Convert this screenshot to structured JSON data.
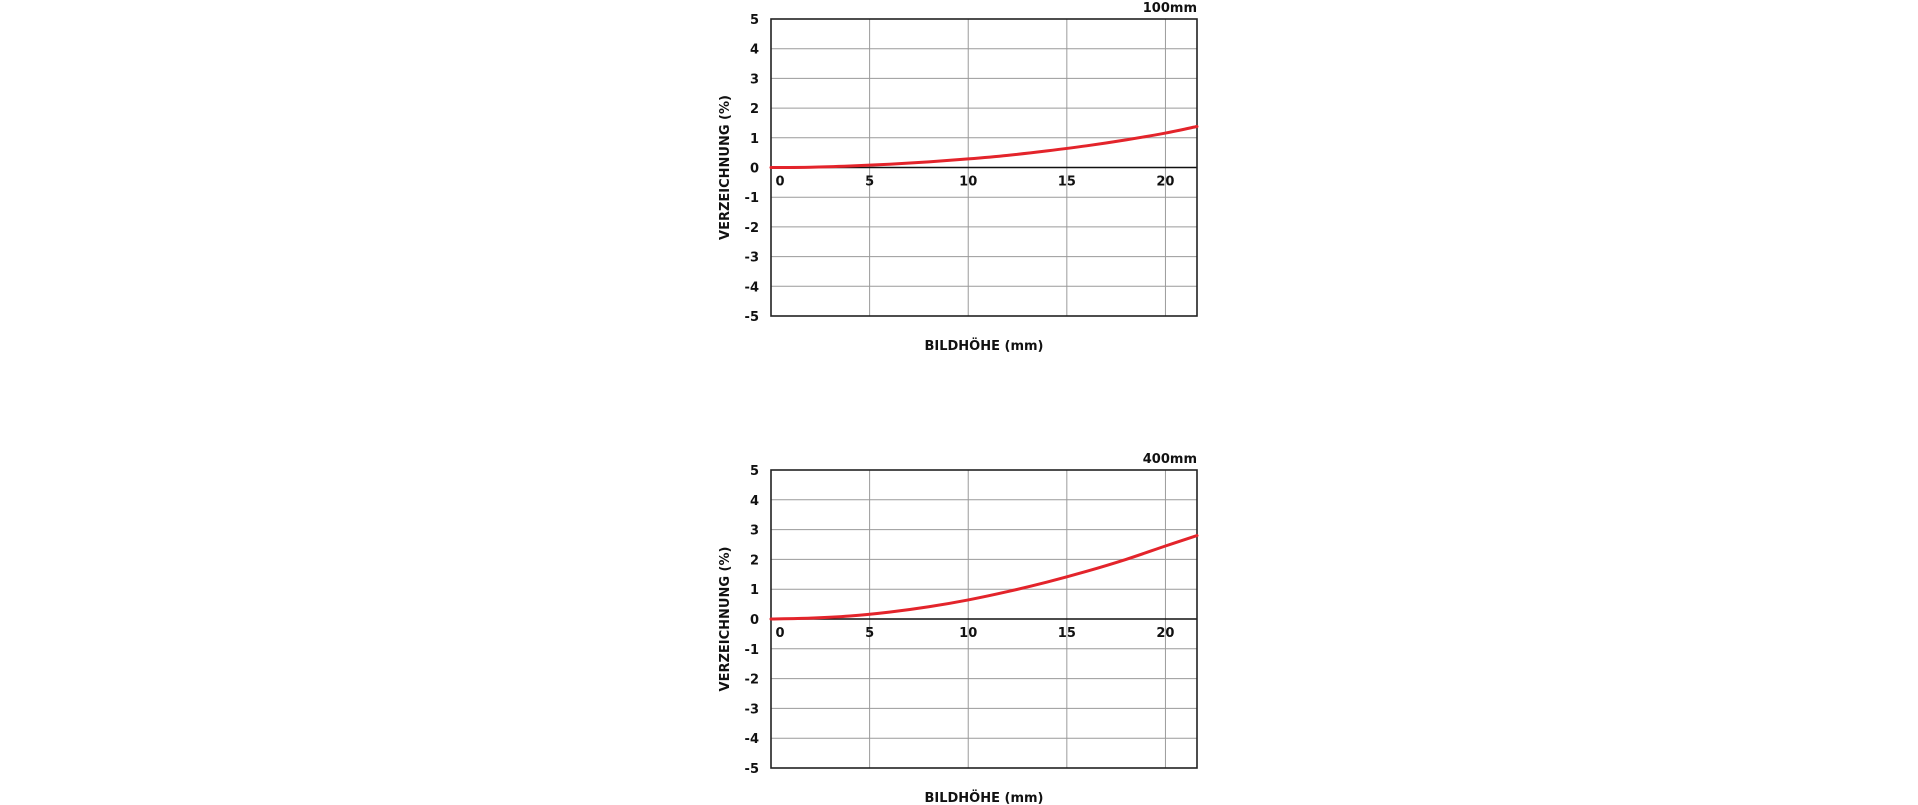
{
  "colors": {
    "curve": "#e3242b",
    "grid": "#9a9a9a",
    "frame": "#222222"
  },
  "chart_data": [
    {
      "type": "line",
      "title": "100mm",
      "xlabel": "BILDHÖHE (mm)",
      "ylabel": "VERZEICHNUNG (%)",
      "xlim": [
        0,
        21.6
      ],
      "ylim": [
        -5,
        5
      ],
      "xticks": [
        "0",
        "5",
        "10",
        "15",
        "20"
      ],
      "yticks": [
        "5",
        "4",
        "3",
        "2",
        "1",
        "0",
        "-1",
        "-2",
        "-3",
        "-4",
        "-5"
      ],
      "grid": true,
      "series": [
        {
          "x": [
            0,
            2,
            4,
            6,
            8,
            10,
            12,
            14,
            16,
            18,
            20,
            21.6
          ],
          "y": [
            0,
            0.01,
            0.05,
            0.11,
            0.19,
            0.29,
            0.41,
            0.56,
            0.73,
            0.93,
            1.16,
            1.38
          ]
        }
      ]
    },
    {
      "type": "line",
      "title": "400mm",
      "xlabel": "BILDHÖHE (mm)",
      "ylabel": "VERZEICHNUNG (%)",
      "xlim": [
        0,
        21.6
      ],
      "ylim": [
        -5,
        5
      ],
      "xticks": [
        "0",
        "5",
        "10",
        "15",
        "20"
      ],
      "yticks": [
        "5",
        "4",
        "3",
        "2",
        "1",
        "0",
        "-1",
        "-2",
        "-3",
        "-4",
        "-5"
      ],
      "grid": true,
      "series": [
        {
          "x": [
            0,
            2,
            4,
            6,
            8,
            10,
            12,
            14,
            16,
            18,
            20,
            21.6
          ],
          "y": [
            0,
            0.03,
            0.1,
            0.23,
            0.41,
            0.64,
            0.92,
            1.24,
            1.6,
            2.0,
            2.45,
            2.8
          ]
        }
      ]
    }
  ]
}
